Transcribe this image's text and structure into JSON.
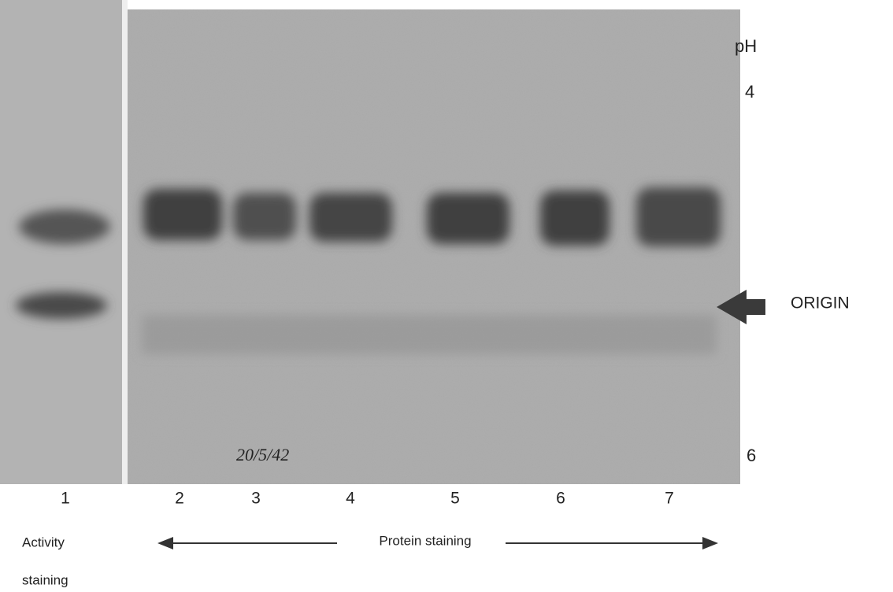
{
  "ph_scale": {
    "label": "pH",
    "top": "4",
    "bottom": "6"
  },
  "lanes": [
    "1",
    "2",
    "3",
    "4",
    "5",
    "6",
    "7"
  ],
  "origin_label": "ORIGIN",
  "captions": {
    "activity": [
      "Activity",
      "staining"
    ],
    "protein": "Protein staining"
  },
  "handwritten_note": "20/5/42"
}
